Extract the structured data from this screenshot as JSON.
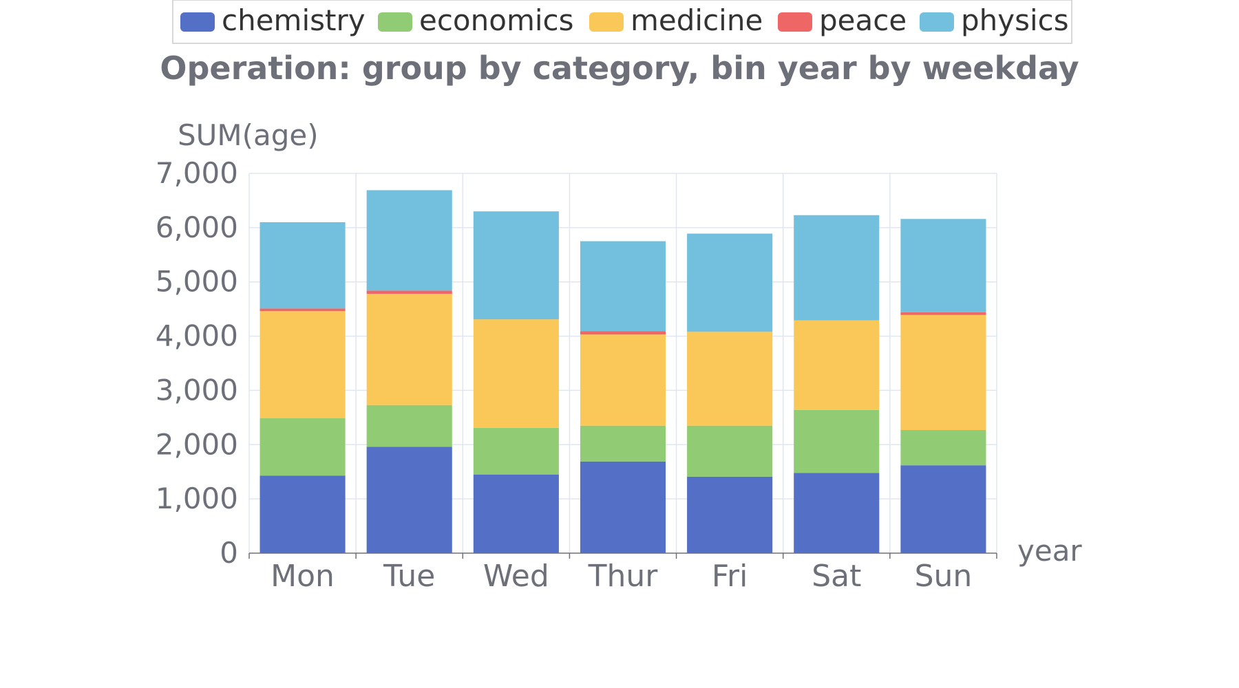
{
  "chart_data": {
    "type": "bar",
    "stacked": true,
    "title": "Operation: group by category, bin year by weekday",
    "xlabel": "year",
    "ylabel": "SUM(age)",
    "ylim": [
      0,
      7000
    ],
    "yticks": [
      "0",
      "1,000",
      "2,000",
      "3,000",
      "4,000",
      "5,000",
      "6,000",
      "7,000"
    ],
    "categories": [
      "Mon",
      "Tue",
      "Wed",
      "Thur",
      "Fri",
      "Sat",
      "Sun"
    ],
    "legend_position": "top-center",
    "grid": true,
    "series": [
      {
        "name": "chemistry",
        "color": "#5470c6",
        "values": [
          1430,
          1960,
          1450,
          1690,
          1410,
          1480,
          1620
        ]
      },
      {
        "name": "economics",
        "color": "#91cc75",
        "values": [
          1060,
          770,
          860,
          660,
          940,
          1160,
          650
        ]
      },
      {
        "name": "medicine",
        "color": "#fac858",
        "values": [
          1970,
          2050,
          2000,
          1680,
          1730,
          1650,
          2120
        ]
      },
      {
        "name": "peace",
        "color": "#ee6666",
        "values": [
          50,
          60,
          0,
          60,
          0,
          0,
          50
        ]
      },
      {
        "name": "physics",
        "color": "#73c0de",
        "values": [
          1590,
          1850,
          1990,
          1660,
          1810,
          1940,
          1720
        ]
      }
    ]
  }
}
